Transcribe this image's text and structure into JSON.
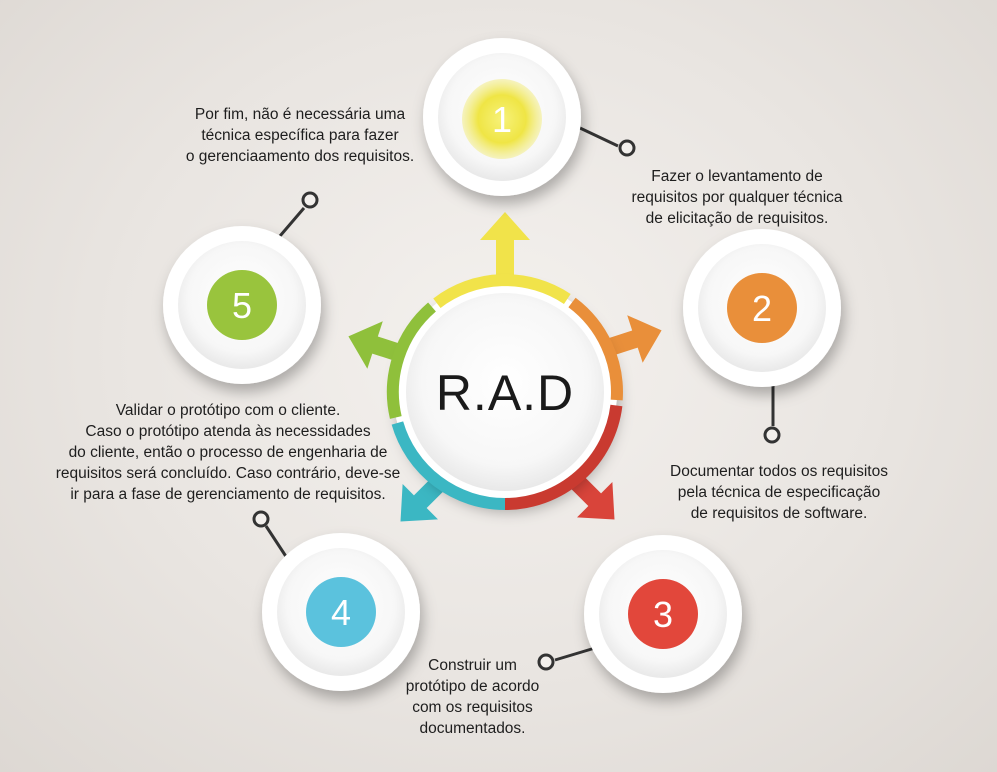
{
  "title": "R.A.D",
  "colors": {
    "step1": "#f1e74a",
    "step2": "#e98f3a",
    "step3": "#e2473b",
    "step4": "#5bc2dd",
    "step5": "#99c43d",
    "ring_teal": "#3bb7c3"
  },
  "steps": [
    {
      "number": "1",
      "text": "Fazer o levantamento de\nrequisitos  por  qualquer técnica\nde elicitação de requisitos."
    },
    {
      "number": "2",
      "text": "Documentar todos os requisitos\npela técnica de especificação\nde requisitos de software."
    },
    {
      "number": "3",
      "text": "Construir um\nprotótipo de acordo\ncom os requisitos\ndocumentados."
    },
    {
      "number": "4",
      "text": "Validar o protótipo com o cliente.\nCaso o protótipo atenda às necessidades\ndo cliente,  então o processo de engenharia de\nrequisitos será concluído. Caso contrário, deve-se\nir para a fase de gerenciamento de requisitos."
    },
    {
      "number": "5",
      "text": "Por fim, não é necessária uma\ntécnica específica para fazer\no gerenciaamento dos requisitos."
    }
  ]
}
